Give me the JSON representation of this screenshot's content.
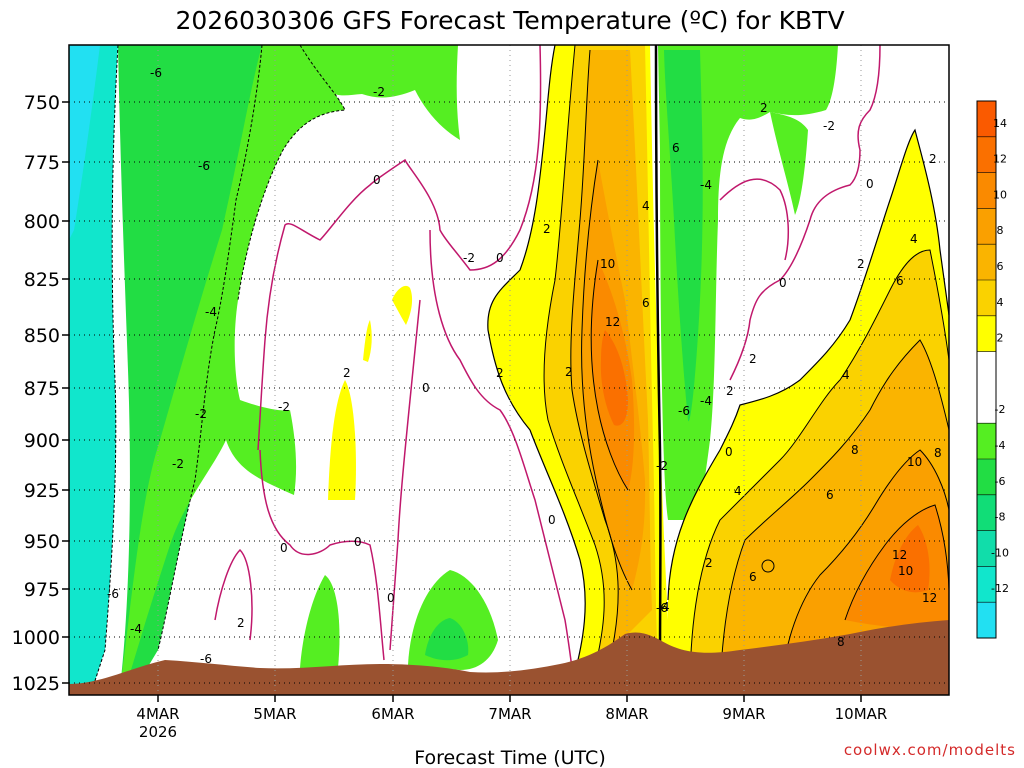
{
  "chart_data": {
    "type": "heatmap",
    "title": "2026030306 GFS Forecast Temperature (ºC) for KBTV",
    "xlabel": "Forecast Time (UTC)",
    "ylabel": "",
    "x_ticks": [
      {
        "label": "4MAR",
        "sublabel": "2026"
      },
      {
        "label": "5MAR",
        "sublabel": ""
      },
      {
        "label": "6MAR",
        "sublabel": ""
      },
      {
        "label": "7MAR",
        "sublabel": ""
      },
      {
        "label": "8MAR",
        "sublabel": ""
      },
      {
        "label": "9MAR",
        "sublabel": ""
      },
      {
        "label": "10MAR",
        "sublabel": ""
      }
    ],
    "x_range_days": [
      3.27,
      10.7
    ],
    "y_range_hpa": [
      728,
      1033
    ],
    "y_ticks": [
      "750",
      "775",
      "800",
      "825",
      "850",
      "875",
      "900",
      "925",
      "950",
      "975",
      "1000",
      "1025"
    ],
    "colorbar": {
      "levels": [
        14,
        12,
        10,
        8,
        6,
        4,
        2,
        -2,
        -4,
        -6,
        -8,
        -10,
        -12
      ],
      "bands": [
        {
          "range": [
            14,
            16
          ],
          "color": "#fa5a00"
        },
        {
          "range": [
            12,
            14
          ],
          "color": "#fa7000"
        },
        {
          "range": [
            10,
            12
          ],
          "color": "#fa8a00"
        },
        {
          "range": [
            8,
            10
          ],
          "color": "#faa000"
        },
        {
          "range": [
            6,
            8
          ],
          "color": "#fab400"
        },
        {
          "range": [
            4,
            6
          ],
          "color": "#fad200"
        },
        {
          "range": [
            2,
            4
          ],
          "color": "#ffff00"
        },
        {
          "range": [
            -2,
            2
          ],
          "color": "#ffffff"
        },
        {
          "range": [
            -4,
            -2
          ],
          "color": "#55ee22"
        },
        {
          "range": [
            -6,
            -4
          ],
          "color": "#22dd44"
        },
        {
          "range": [
            -8,
            -6
          ],
          "color": "#11dd77"
        },
        {
          "range": [
            -10,
            -8
          ],
          "color": "#11ddaa"
        },
        {
          "range": [
            -12,
            -10
          ],
          "color": "#11e6cc"
        },
        {
          "range": [
            -14,
            -12
          ],
          "color": "#22e0f2"
        }
      ]
    },
    "contour_labels": [
      "-6",
      "-2",
      "-6",
      "0",
      "-4",
      "2",
      "-2",
      "-2",
      "-2",
      "0",
      "-6",
      "-4",
      "-6",
      "2",
      "-2",
      "0",
      "2",
      "0",
      "2",
      "0",
      "0",
      "0",
      "10",
      "12",
      "2",
      "6",
      "4",
      "6",
      "2",
      "0",
      "-4",
      "-2",
      "2",
      "2",
      "0",
      "2",
      "4",
      "4",
      "6",
      "8",
      "10",
      "8",
      "6",
      "4",
      "2",
      "12",
      "10",
      "12",
      "8",
      "-6",
      "6",
      "2",
      "0",
      "-2",
      "-6",
      "-4",
      "4"
    ],
    "ground_color": "#9a5230",
    "credit": "coolwx.com/modelts"
  }
}
